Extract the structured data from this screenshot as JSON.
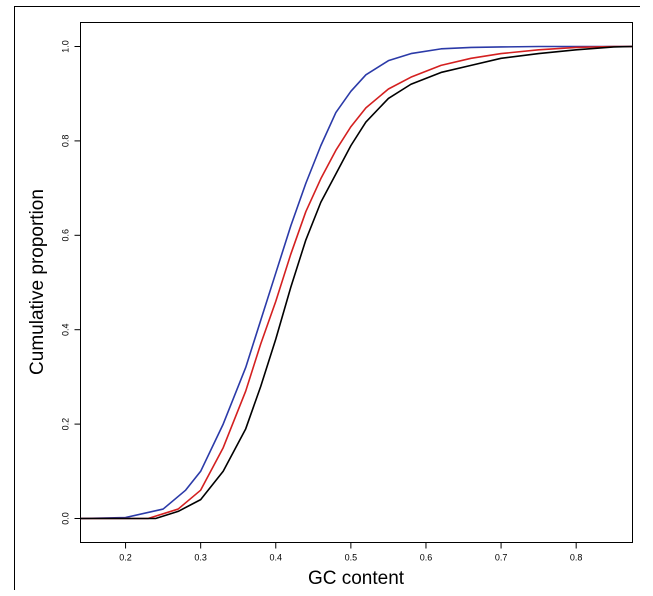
{
  "chart_data": {
    "type": "line",
    "xlabel": "GC content",
    "ylabel": "Cumulative proportion",
    "xlim": [
      0.14,
      0.875
    ],
    "ylim": [
      0.0,
      1.0
    ],
    "xticks": [
      0.2,
      0.3,
      0.4,
      0.5,
      0.6,
      0.7,
      0.8
    ],
    "xtick_labels": [
      "0.2",
      "0.3",
      "0.4",
      "0.5",
      "0.6",
      "0.7",
      "0.8"
    ],
    "yticks": [
      0.0,
      0.2,
      0.4,
      0.6,
      0.8,
      1.0
    ],
    "ytick_labels": [
      "0.0",
      "0.2",
      "0.4",
      "0.6",
      "0.8",
      "1.0"
    ],
    "grid": false,
    "legend": "none",
    "series": [
      {
        "color": "#2b3aa8",
        "x": [
          0.14,
          0.2,
          0.25,
          0.28,
          0.3,
          0.33,
          0.36,
          0.38,
          0.4,
          0.42,
          0.44,
          0.46,
          0.48,
          0.5,
          0.52,
          0.55,
          0.58,
          0.62,
          0.66,
          0.7,
          0.75,
          0.8,
          0.875
        ],
        "y": [
          0.0,
          0.002,
          0.02,
          0.06,
          0.1,
          0.2,
          0.32,
          0.42,
          0.52,
          0.62,
          0.71,
          0.79,
          0.86,
          0.905,
          0.94,
          0.97,
          0.985,
          0.995,
          0.998,
          0.999,
          1.0,
          1.0,
          1.0
        ]
      },
      {
        "color": "#d42020",
        "x": [
          0.14,
          0.23,
          0.27,
          0.3,
          0.33,
          0.36,
          0.38,
          0.4,
          0.42,
          0.44,
          0.46,
          0.48,
          0.5,
          0.52,
          0.55,
          0.58,
          0.62,
          0.66,
          0.7,
          0.75,
          0.8,
          0.85,
          0.875
        ],
        "y": [
          0.0,
          0.0,
          0.02,
          0.06,
          0.15,
          0.27,
          0.37,
          0.46,
          0.56,
          0.65,
          0.72,
          0.78,
          0.83,
          0.87,
          0.91,
          0.935,
          0.96,
          0.975,
          0.985,
          0.993,
          0.998,
          1.0,
          1.0
        ]
      },
      {
        "color": "#000000",
        "x": [
          0.14,
          0.24,
          0.27,
          0.3,
          0.33,
          0.36,
          0.38,
          0.4,
          0.42,
          0.44,
          0.46,
          0.48,
          0.5,
          0.52,
          0.55,
          0.58,
          0.62,
          0.66,
          0.7,
          0.75,
          0.8,
          0.85,
          0.875
        ],
        "y": [
          0.0,
          0.0,
          0.015,
          0.04,
          0.1,
          0.19,
          0.28,
          0.38,
          0.49,
          0.59,
          0.67,
          0.73,
          0.79,
          0.84,
          0.89,
          0.92,
          0.945,
          0.96,
          0.975,
          0.985,
          0.993,
          0.999,
          1.0
        ]
      }
    ]
  }
}
